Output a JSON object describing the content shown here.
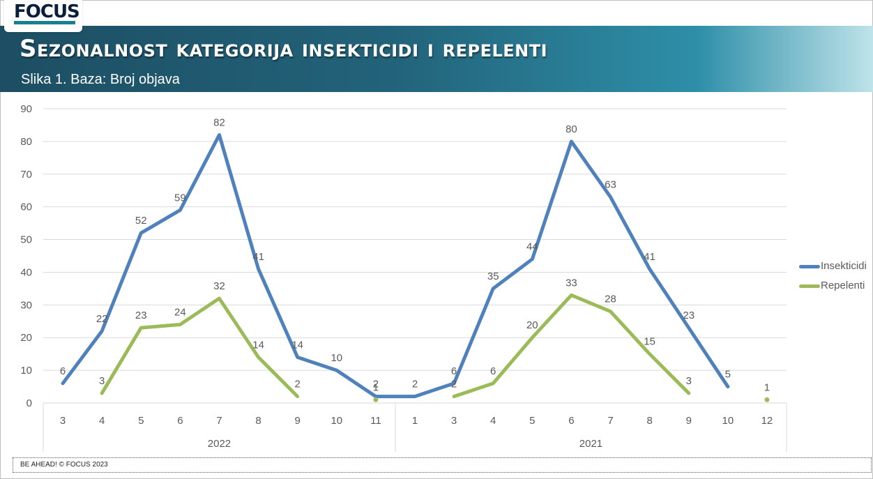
{
  "header": {
    "logo_text": "FOCUS",
    "title": "Sezonalnost kategorija insekticidi i repelenti",
    "subtitle": "Slika 1. Baza: Broj objava"
  },
  "footer": {
    "text": "BE AHEAD! © FOCUS 2023"
  },
  "colors": {
    "insekticidi": "#4f81bd",
    "repelenti": "#9bbb59",
    "grid": "#d9d9d9",
    "axis_text": "#595959"
  },
  "chart_data": {
    "type": "line",
    "ylim": [
      0,
      90
    ],
    "yticks": [
      0,
      10,
      20,
      30,
      40,
      50,
      60,
      70,
      80,
      90
    ],
    "grid": true,
    "legend_position": "right",
    "groups": [
      {
        "label": "2022",
        "categories": [
          "3",
          "4",
          "5",
          "6",
          "7",
          "8",
          "9",
          "10",
          "11"
        ]
      },
      {
        "label": "2021",
        "categories": [
          "1",
          "3",
          "4",
          "5",
          "6",
          "7",
          "8",
          "9",
          "10",
          "12"
        ]
      }
    ],
    "series": [
      {
        "name": "Insekticidi",
        "values": [
          6,
          22,
          52,
          59,
          82,
          41,
          14,
          10,
          2,
          2,
          6,
          35,
          44,
          80,
          63,
          41,
          23,
          5,
          null
        ]
      },
      {
        "name": "Repelenti",
        "values": [
          null,
          3,
          23,
          24,
          32,
          14,
          2,
          null,
          1,
          null,
          2,
          6,
          20,
          33,
          28,
          15,
          3,
          null,
          1
        ]
      }
    ]
  }
}
